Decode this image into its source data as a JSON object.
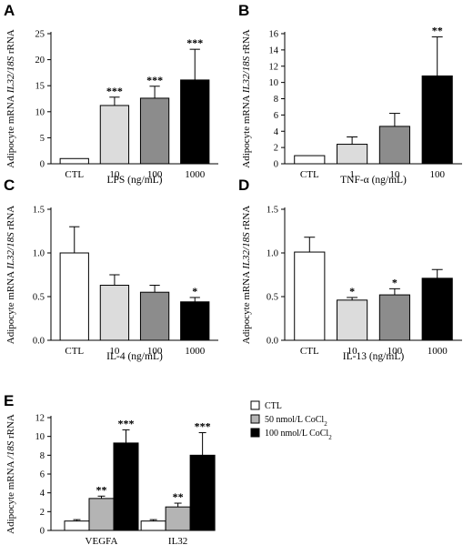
{
  "colors": {
    "ctl": "#ffffff",
    "low": "#dcdcdc",
    "mid": "#8c8c8c",
    "high": "#000000",
    "stroke": "#000000"
  },
  "chart_data": [
    {
      "panel": "A",
      "type": "bar",
      "ylabel_parts": [
        "Adipocyte mRNA ",
        "IL32/18S",
        " rRNA"
      ],
      "xlabel": "LPS (ng/mL)",
      "categories": [
        "CTL",
        "10",
        "100",
        "1000"
      ],
      "values": [
        1.0,
        11.2,
        12.6,
        16.1
      ],
      "errors": [
        0,
        1.6,
        2.3,
        5.9
      ],
      "significance": [
        "",
        "***",
        "***",
        "***"
      ],
      "colors": [
        "#ffffff",
        "#dcdcdc",
        "#8c8c8c",
        "#000000"
      ],
      "ylim": [
        0,
        25
      ],
      "yticks": [
        0,
        5,
        10,
        15,
        20,
        25
      ],
      "ytick_labels": [
        "0",
        "5",
        "10",
        "15",
        "20",
        "25"
      ]
    },
    {
      "panel": "B",
      "type": "bar",
      "ylabel_parts": [
        "Adipocyte mRNA ",
        "IL32/18S",
        " rRNA"
      ],
      "xlabel": "TNF-α (ng/mL)",
      "categories": [
        "CTL",
        "1",
        "10",
        "100"
      ],
      "values": [
        1.0,
        2.4,
        4.6,
        10.8
      ],
      "errors": [
        0,
        0.9,
        1.6,
        4.8
      ],
      "significance": [
        "",
        "",
        "",
        "**"
      ],
      "colors": [
        "#ffffff",
        "#dcdcdc",
        "#8c8c8c",
        "#000000"
      ],
      "ylim": [
        0,
        16
      ],
      "yticks": [
        0,
        2,
        4,
        6,
        8,
        10,
        12,
        14,
        16
      ],
      "ytick_labels": [
        "0",
        "2",
        "4",
        "6",
        "8",
        "10",
        "12",
        "14",
        "16"
      ]
    },
    {
      "panel": "C",
      "type": "bar",
      "ylabel_parts": [
        "Adipocyte mRNA ",
        "IL32/18S",
        " rRNA"
      ],
      "xlabel": "IL-4 (ng/mL)",
      "categories": [
        "CTL",
        "10",
        "100",
        "1000"
      ],
      "values": [
        1.0,
        0.63,
        0.55,
        0.44
      ],
      "errors": [
        0.3,
        0.12,
        0.08,
        0.05
      ],
      "significance": [
        "",
        "",
        "",
        "*"
      ],
      "colors": [
        "#ffffff",
        "#dcdcdc",
        "#8c8c8c",
        "#000000"
      ],
      "ylim": [
        0,
        1.5
      ],
      "yticks": [
        0,
        0.5,
        1.0,
        1.5
      ],
      "ytick_labels": [
        "0.0",
        "0.5",
        "1.0",
        "1.5"
      ]
    },
    {
      "panel": "D",
      "type": "bar",
      "ylabel_parts": [
        "Adipocyte mRNA ",
        "IL32/18S",
        " rRNA"
      ],
      "xlabel": "IL-13 (ng/mL)",
      "categories": [
        "CTL",
        "10",
        "100",
        "1000"
      ],
      "values": [
        1.01,
        0.46,
        0.52,
        0.71
      ],
      "errors": [
        0.17,
        0.03,
        0.07,
        0.1
      ],
      "significance": [
        "",
        "*",
        "*",
        ""
      ],
      "colors": [
        "#ffffff",
        "#dcdcdc",
        "#8c8c8c",
        "#000000"
      ],
      "ylim": [
        0,
        1.5
      ],
      "yticks": [
        0,
        0.5,
        1.0,
        1.5
      ],
      "ytick_labels": [
        "0.0",
        "0.5",
        "1.0",
        "1.5"
      ]
    },
    {
      "panel": "E",
      "type": "bar",
      "ylabel_parts": [
        "Adipocyte mRNA ",
        "/18S",
        " rRNA"
      ],
      "xlabel": "",
      "categories": [
        "VEGFA",
        "IL32"
      ],
      "series": [
        {
          "name": "CTL",
          "color": "#ffffff",
          "values": [
            1.0,
            1.0
          ],
          "errors": [
            0.15,
            0.15
          ],
          "significance": [
            "",
            ""
          ]
        },
        {
          "name": "50 nmol/L CoCl",
          "name_sub": "2",
          "color": "#b4b4b4",
          "values": [
            3.4,
            2.5
          ],
          "errors": [
            0.25,
            0.4
          ],
          "significance": [
            "**",
            "**"
          ]
        },
        {
          "name": "100 nmol/L CoCl",
          "name_sub": "2",
          "color": "#000000",
          "values": [
            9.3,
            8.0
          ],
          "errors": [
            1.4,
            2.4
          ],
          "significance": [
            "***",
            "***"
          ]
        }
      ],
      "legend_position": "right",
      "ylim": [
        0,
        12
      ],
      "yticks": [
        0,
        2,
        4,
        6,
        8,
        10,
        12
      ],
      "ytick_labels": [
        "0",
        "2",
        "4",
        "6",
        "8",
        "10",
        "12"
      ]
    }
  ]
}
